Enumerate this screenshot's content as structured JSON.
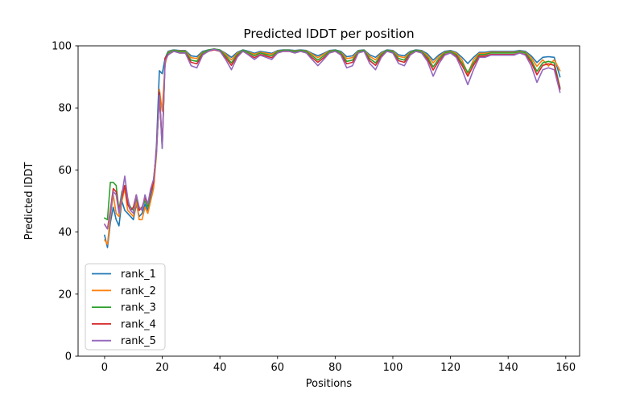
{
  "figure": {
    "background": "#ffffff",
    "text_color": "#000000",
    "spine_color": "#000000"
  },
  "chart_data": {
    "type": "line",
    "title": "Predicted lDDT per position",
    "xlabel": "Positions",
    "ylabel": "Predicted lDDT",
    "xlim": [
      -9.2,
      164.8
    ],
    "ylim": [
      0,
      100
    ],
    "xticks": [
      0,
      20,
      40,
      60,
      80,
      100,
      120,
      140,
      160
    ],
    "yticks": [
      0,
      20,
      40,
      60,
      80,
      100
    ],
    "grid": false,
    "legend_position": "lower left",
    "x": [
      0,
      1,
      2,
      3,
      4,
      5,
      6,
      7,
      8,
      9,
      10,
      11,
      12,
      13,
      14,
      15,
      16,
      17,
      18,
      19,
      20,
      21,
      22,
      23,
      24,
      26,
      28,
      30,
      32,
      34,
      36,
      38,
      40,
      42,
      44,
      46,
      48,
      50,
      52,
      54,
      56,
      58,
      60,
      62,
      64,
      66,
      68,
      70,
      72,
      74,
      76,
      78,
      80,
      82,
      84,
      86,
      88,
      90,
      92,
      94,
      96,
      98,
      100,
      102,
      104,
      106,
      108,
      110,
      112,
      114,
      116,
      118,
      120,
      122,
      124,
      126,
      128,
      130,
      132,
      134,
      136,
      138,
      140,
      142,
      144,
      146,
      148,
      150,
      152,
      154,
      156,
      158
    ],
    "series": [
      {
        "name": "rank_1",
        "color": "#1f77b4",
        "values": [
          39,
          35,
          43,
          48,
          44,
          42,
          50,
          47,
          46,
          45,
          44,
          49,
          45,
          46,
          49,
          47,
          51,
          55,
          68,
          92,
          91,
          96,
          98.2,
          98.5,
          98.7,
          98.5,
          98.5,
          96.8,
          96.5,
          98.2,
          98.7,
          99,
          98.7,
          97.6,
          96.3,
          97.9,
          98.7,
          98.2,
          97.6,
          98.2,
          97.9,
          97.6,
          98.5,
          98.7,
          98.7,
          98.5,
          98.7,
          98.5,
          97.6,
          96.8,
          97.6,
          98.5,
          98.7,
          98.2,
          96.5,
          96.8,
          98.5,
          98.7,
          97.1,
          96.3,
          97.9,
          98.7,
          98.5,
          97.1,
          96.8,
          98.2,
          98.7,
          98.5,
          97.4,
          95.4,
          97.1,
          98.2,
          98.5,
          97.9,
          96.3,
          94.3,
          96.3,
          97.9,
          97.9,
          98.2,
          98.2,
          98.2,
          98.2,
          98.2,
          98.5,
          98.2,
          96.8,
          94.6,
          96.3,
          96.5,
          96.3,
          90
        ]
      },
      {
        "name": "rank_2",
        "color": "#ff7f0e",
        "values": [
          37.5,
          36,
          45,
          52,
          46,
          45,
          50,
          54,
          47,
          46,
          45,
          50,
          44,
          44,
          48,
          46,
          50,
          54,
          65,
          86,
          79,
          94,
          97.9,
          98.3,
          98.6,
          98.3,
          98.3,
          96.2,
          95.9,
          97.9,
          98.6,
          99,
          98.6,
          97.3,
          95.5,
          97.6,
          98.6,
          97.9,
          97.3,
          97.9,
          97.6,
          97.3,
          98.3,
          98.6,
          98.6,
          98.3,
          98.6,
          98.3,
          97.3,
          96.2,
          97.3,
          98.3,
          98.6,
          97.9,
          95.9,
          96.2,
          98.3,
          98.6,
          96.6,
          95.5,
          97.6,
          98.6,
          98.3,
          96.6,
          96.2,
          97.9,
          98.6,
          98.3,
          96.9,
          94.5,
          96.6,
          97.9,
          98.3,
          97.6,
          95.5,
          91,
          95.5,
          97.6,
          97.6,
          97.9,
          97.9,
          97.9,
          97.9,
          97.9,
          98.3,
          97.9,
          96.2,
          93.4,
          95.5,
          93.5,
          95.5,
          92
        ]
      },
      {
        "name": "rank_3",
        "color": "#2ca02c",
        "values": [
          44.5,
          44,
          56,
          56,
          55,
          47,
          53,
          55,
          50,
          48,
          47,
          51,
          47,
          48,
          50,
          48,
          53,
          57,
          66,
          85,
          67,
          96,
          97.7,
          98.1,
          98.6,
          98.1,
          98.1,
          95.4,
          95,
          97.7,
          98.6,
          99,
          98.6,
          96.8,
          94.5,
          97.2,
          98.6,
          97.7,
          96.8,
          97.7,
          97.2,
          96.8,
          98.1,
          98.6,
          98.6,
          98.1,
          98.6,
          98.1,
          96.8,
          95.4,
          96.8,
          98.1,
          98.6,
          97.7,
          95,
          95.4,
          98.1,
          98.6,
          95.9,
          94.5,
          97.2,
          98.6,
          98.1,
          95.9,
          95.4,
          97.7,
          98.6,
          98.1,
          96.3,
          93.2,
          95.9,
          97.7,
          98.1,
          97.2,
          94.5,
          91.4,
          94.5,
          97.2,
          97.2,
          97.7,
          97.7,
          97.7,
          97.7,
          97.7,
          98.1,
          97.7,
          95.4,
          91.8,
          94.5,
          95,
          94.5,
          86.5
        ]
      },
      {
        "name": "rank_4",
        "color": "#d62728",
        "values": [
          42.5,
          41,
          47,
          54,
          53,
          47,
          51,
          55,
          49,
          47,
          48,
          52,
          47,
          48,
          51,
          49,
          53,
          56,
          67,
          85,
          68,
          96,
          97.2,
          97.7,
          98.2,
          97.7,
          97.7,
          94.7,
          94.2,
          97.2,
          98.2,
          98.7,
          98.2,
          96.2,
          93.7,
          96.7,
          98.2,
          97.2,
          96.2,
          97.2,
          96.7,
          96.2,
          97.7,
          98.2,
          98.2,
          97.7,
          98.2,
          97.7,
          96.2,
          94.7,
          96.2,
          97.7,
          98.2,
          97.2,
          94.2,
          94.7,
          97.7,
          98.2,
          95.2,
          93.7,
          96.7,
          98.2,
          97.7,
          95.2,
          94.7,
          97.2,
          98.2,
          97.7,
          95.7,
          92.2,
          95.2,
          97.2,
          97.7,
          96.7,
          93.7,
          90.2,
          93.7,
          96.7,
          96.7,
          97.2,
          97.2,
          97.2,
          97.2,
          97.2,
          97.7,
          97.2,
          94.7,
          90.7,
          93.7,
          94.2,
          93.7,
          86
        ]
      },
      {
        "name": "rank_5",
        "color": "#9467bd",
        "values": [
          42.5,
          41,
          46,
          53,
          52,
          46,
          52,
          58,
          51,
          47,
          46,
          52,
          48,
          47,
          52,
          49,
          54,
          57,
          66,
          84,
          67,
          95,
          97,
          97.7,
          98.3,
          97.7,
          97.7,
          93.6,
          92.9,
          97,
          98.3,
          98.9,
          98.3,
          95.6,
          92.3,
          96.3,
          98.3,
          97,
          95.6,
          97,
          96.3,
          95.6,
          97.7,
          98.3,
          98.3,
          97.7,
          98.3,
          97.7,
          95.6,
          93.6,
          95.6,
          97.7,
          98.3,
          97,
          92.9,
          93.6,
          97.7,
          98.3,
          94.3,
          92.3,
          96.3,
          98.3,
          97.7,
          94.3,
          93.6,
          97,
          98.3,
          97.7,
          95,
          90.2,
          94.3,
          97,
          97.7,
          96.3,
          92.3,
          87.5,
          92.3,
          96.3,
          96.3,
          97,
          97,
          97,
          97,
          97,
          97.7,
          97,
          93.6,
          88.2,
          92.3,
          92.9,
          92.3,
          85
        ]
      }
    ]
  }
}
